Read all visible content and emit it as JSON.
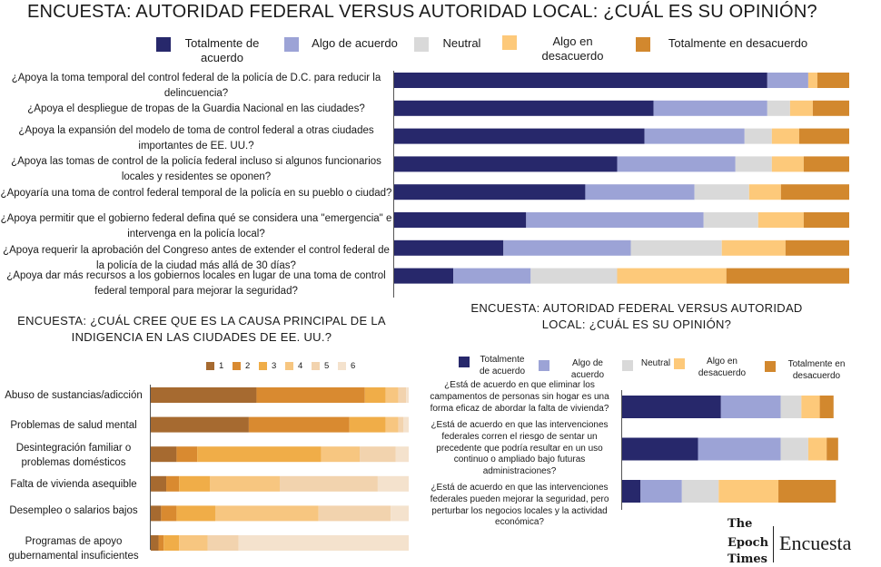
{
  "colors": {
    "agree_strong": "#27286b",
    "agree": "#9ca3d6",
    "neutral": "#d9d9d9",
    "disagree": "#fdc97a",
    "disagree_strong": "#d2882e",
    "rank": [
      "#a66a30",
      "#d98a30",
      "#f0ad48",
      "#f7c680",
      "#f2d3ae",
      "#f4e2cd"
    ]
  },
  "top": {
    "title": "ENCUESTA: AUTORIDAD FEDERAL VERSUS AUTORIDAD LOCAL: ¿CUÁL ES SU OPINIÓN?",
    "legend": [
      "Totalmente de acuerdo",
      "Algo de acuerdo",
      "Neutral",
      "Algo en desacuerdo",
      "Totalmente en desacuerdo"
    ]
  },
  "bottom_right": {
    "title": "ENCUESTA: AUTORIDAD FEDERAL VERSUS AUTORIDAD LOCAL: ¿CUÁL ES SU OPINIÓN?",
    "legend": [
      "Totalmente de acuerdo",
      "Algo de acuerdo",
      "Neutral",
      "Algo en desacuerdo",
      "Totalmente en desacuerdo"
    ]
  },
  "bottom_left": {
    "title": "ENCUESTA: ¿CUÁL CREE QUE ES LA CAUSA PRINCIPAL DE LA INDIGENCIA EN LAS CIUDADES DE EE. UU.?",
    "legend": [
      "1",
      "2",
      "3",
      "4",
      "5",
      "6"
    ]
  },
  "brand": {
    "epoch": [
      "The",
      "Epoch",
      "Times"
    ],
    "label": "Encuesta"
  },
  "chart_data": [
    {
      "type": "bar",
      "orientation": "horizontal",
      "stacked": true,
      "unit": "percent",
      "title": "ENCUESTA: AUTORIDAD FEDERAL VERSUS AUTORIDAD LOCAL: ¿CUÁL ES SU OPINIÓN?",
      "categories": [
        "¿Apoya la toma temporal del control federal de la policía de D.C. para reducir la delincuencia?",
        "¿Apoya el despliegue de tropas de la Guardia Nacional en las ciudades?",
        "¿Apoya la expansión del modelo de toma de control federal a otras ciudades importantes de EE. UU.?",
        "¿Apoya las tomas de control de la policía federal incluso si algunos funcionarios locales y residentes se oponen?",
        "¿Apoyaría una toma de control federal temporal de la policía en su pueblo o ciudad?",
        "¿Apoya permitir que el gobierno federal defina qué se considera una \"emergencia\" e intervenga en la policía local?",
        "¿Apoya requerir la aprobación del Congreso antes de extender el control federal de la policía de la ciudad más allá de 30 días?",
        "¿Apoya dar más recursos a los gobiernos locales en lugar de una toma de control federal temporal para mejorar la seguridad?"
      ],
      "series": [
        {
          "name": "Totalmente de acuerdo",
          "values": [
            82,
            57,
            55,
            49,
            42,
            29,
            24,
            13
          ]
        },
        {
          "name": "Algo de acuerdo",
          "values": [
            9,
            25,
            22,
            26,
            24,
            39,
            28,
            17
          ]
        },
        {
          "name": "Neutral",
          "values": [
            0,
            5,
            6,
            8,
            12,
            12,
            20,
            19
          ]
        },
        {
          "name": "Algo en desacuerdo",
          "values": [
            2,
            5,
            6,
            7,
            7,
            10,
            14,
            24
          ]
        },
        {
          "name": "Totalmente en desacuerdo",
          "values": [
            7,
            8,
            11,
            10,
            15,
            10,
            14,
            27
          ]
        }
      ],
      "xlim": [
        0,
        100
      ],
      "legend_position": "top"
    },
    {
      "type": "bar",
      "orientation": "horizontal",
      "stacked": true,
      "unit": "percent",
      "title": "ENCUESTA: ¿CUÁL CREE QUE ES LA CAUSA PRINCIPAL DE LA INDIGENCIA EN LAS CIUDADES DE EE. UU.?",
      "categories": [
        "Abuso de sustancias/adicción",
        "Problemas de salud mental",
        "Desintegración familiar o problemas domésticos",
        "Falta de vivienda asequible",
        "Desempleo o salarios bajos",
        "Programas de apoyo gubernamental insuficientes"
      ],
      "series": [
        {
          "name": "1",
          "values": [
            41,
            38,
            10,
            6,
            4,
            3
          ]
        },
        {
          "name": "2",
          "values": [
            42,
            39,
            8,
            5,
            6,
            2
          ]
        },
        {
          "name": "3",
          "values": [
            8,
            14,
            48,
            12,
            15,
            6
          ]
        },
        {
          "name": "4",
          "values": [
            5,
            5,
            15,
            27,
            40,
            11
          ]
        },
        {
          "name": "5",
          "values": [
            3,
            2,
            14,
            38,
            28,
            12
          ]
        },
        {
          "name": "6",
          "values": [
            1,
            2,
            5,
            12,
            7,
            66
          ]
        }
      ],
      "xlim": [
        0,
        100
      ],
      "legend_position": "top"
    },
    {
      "type": "bar",
      "orientation": "horizontal",
      "stacked": true,
      "unit": "percent",
      "title": "ENCUESTA: AUTORIDAD FEDERAL VERSUS AUTORIDAD LOCAL: ¿CUÁL ES SU OPINIÓN?",
      "categories": [
        "¿Está de acuerdo en que eliminar los campamentos de personas sin hogar es una forma eficaz de abordar la falta de vivienda?",
        "¿Está de acuerdo en que las intervenciones federales corren el riesgo de sentar un precedente que podría resultar en un uso continuo o ampliado bajo futuras administraciones?",
        "¿Está de acuerdo en que las intervenciones federales pueden mejorar la seguridad, pero perturbar los negocios locales y la actividad económica?"
      ],
      "series": [
        {
          "name": "Totalmente de acuerdo",
          "values": [
            43,
            33,
            8
          ]
        },
        {
          "name": "Algo de acuerdo",
          "values": [
            26,
            36,
            18
          ]
        },
        {
          "name": "Neutral",
          "values": [
            9,
            12,
            16
          ]
        },
        {
          "name": "Algo en desacuerdo",
          "values": [
            8,
            8,
            26
          ]
        },
        {
          "name": "Totalmente en desacuerdo",
          "values": [
            6,
            5,
            25
          ]
        }
      ],
      "xlim": [
        0,
        100
      ],
      "legend_position": "top"
    }
  ]
}
